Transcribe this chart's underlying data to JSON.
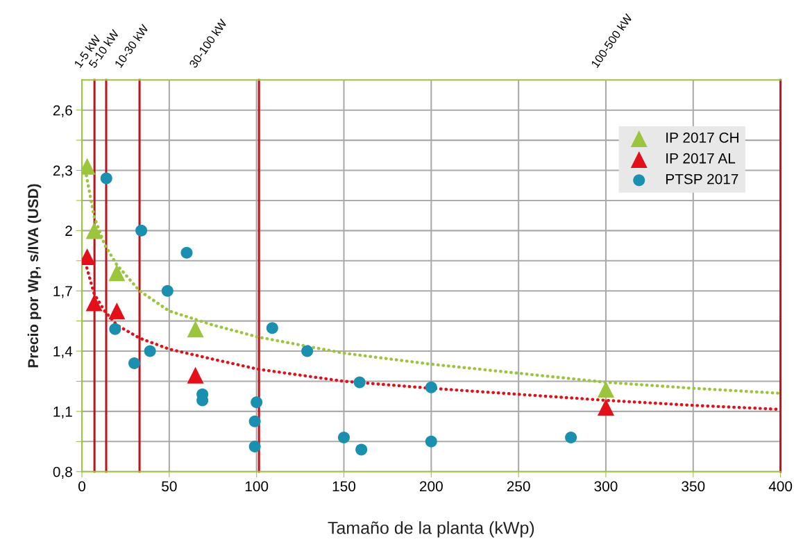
{
  "chart_data": {
    "type": "scatter",
    "xlabel": "Tamaño de la planta (kWp)",
    "ylabel": "Precio por Wp, s/IVA (USD)",
    "xlim": [
      0,
      400
    ],
    "xticks": [
      0,
      50,
      100,
      150,
      200,
      250,
      300,
      350,
      400
    ],
    "ylim": [
      0.8,
      2.75
    ],
    "yticks": [
      {
        "value": 0.8,
        "label": "0,8"
      },
      {
        "value": 0.95,
        "label": null
      },
      {
        "value": 1.1,
        "label": "1,1"
      },
      {
        "value": 1.25,
        "label": null
      },
      {
        "value": 1.4,
        "label": "1,4"
      },
      {
        "value": 1.55,
        "label": null
      },
      {
        "value": 1.7,
        "label": "1,7"
      },
      {
        "value": 1.85,
        "label": null
      },
      {
        "value": 2.0,
        "label": "2"
      },
      {
        "value": 2.15,
        "label": null
      },
      {
        "value": 2.3,
        "label": "2,3"
      },
      {
        "value": 2.45,
        "label": null
      },
      {
        "value": 2.6,
        "label": "2,6"
      }
    ],
    "annotations": [
      "1-5 kW",
      "5-10 kW",
      "10-30 kW",
      "30-100 kW",
      "100-500 kW"
    ],
    "grid": true,
    "legend": "top right",
    "ref_lines": [
      {
        "axis": "x",
        "value": 7.2,
        "color": "#c0141c"
      },
      {
        "axis": "x",
        "value": 13.9,
        "color": "#c0141c"
      },
      {
        "axis": "x",
        "value": 33,
        "color": "#c0141c"
      },
      {
        "axis": "x",
        "value": 101.4,
        "color": "#c0141c"
      },
      {
        "axis": "x",
        "value": 400,
        "color": "#c0141c"
      }
    ],
    "series": [
      {
        "type": "line",
        "color": "#9bc53d",
        "line_style": "dotted",
        "marker": "none",
        "x": [
          2,
          7,
          13,
          20,
          33,
          50,
          75,
          101,
          150,
          200,
          250,
          300,
          350,
          400
        ],
        "values": [
          2.3,
          2.07,
          1.93,
          1.83,
          1.7,
          1.6,
          1.53,
          1.47,
          1.39,
          1.335,
          1.29,
          1.245,
          1.215,
          1.19
        ]
      },
      {
        "type": "line",
        "color": "#e3101a",
        "line_style": "dotted",
        "marker": "none",
        "x": [
          2,
          7,
          13,
          20,
          33,
          50,
          75,
          101,
          150,
          200,
          250,
          300,
          350,
          400
        ],
        "values": [
          1.84,
          1.685,
          1.6,
          1.53,
          1.465,
          1.41,
          1.36,
          1.31,
          1.25,
          1.215,
          1.185,
          1.155,
          1.13,
          1.11
        ]
      },
      {
        "name": "IP 2017 CH",
        "marker": "triangle",
        "color": "#9bc53d",
        "x": [
          3,
          7,
          20,
          65,
          300
        ],
        "values": [
          2.32,
          2.0,
          1.79,
          1.51,
          1.21
        ]
      },
      {
        "name": "IP 2017 AL",
        "marker": "triangle",
        "color": "#e3101a",
        "x": [
          3,
          7,
          20,
          65,
          300
        ],
        "values": [
          1.87,
          1.64,
          1.6,
          1.28,
          1.12
        ]
      },
      {
        "name": "PTSP 2017",
        "marker": "circle",
        "color": "#1a8fb0",
        "x": [
          14,
          34,
          60,
          49,
          19,
          30,
          39,
          69,
          69,
          100,
          99,
          99,
          109,
          129,
          159,
          150,
          160,
          200,
          200,
          280
        ],
        "values": [
          2.26,
          2.0,
          1.89,
          1.7,
          1.51,
          1.34,
          1.4,
          1.185,
          1.155,
          1.145,
          1.05,
          0.925,
          1.515,
          1.4,
          1.245,
          0.97,
          0.91,
          1.22,
          0.95,
          0.97
        ]
      }
    ]
  }
}
